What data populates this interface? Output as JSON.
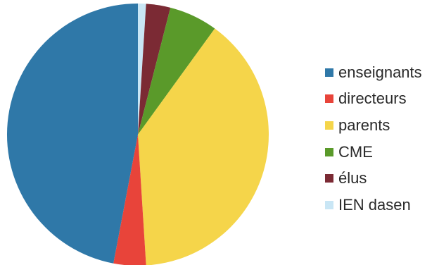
{
  "chart_data": {
    "type": "pie",
    "title": "",
    "start_angle_deg": 0,
    "direction": "clockwise",
    "legend_position": "right",
    "slices": [
      {
        "label": "IEN dasen",
        "value": 1,
        "color": "#c9e6f5"
      },
      {
        "label": "élus",
        "value": 3,
        "color": "#7b2a34"
      },
      {
        "label": "CME",
        "value": 6,
        "color": "#5a9a2a"
      },
      {
        "label": "parents",
        "value": 39,
        "color": "#f5d54a"
      },
      {
        "label": "directeurs",
        "value": 4,
        "color": "#e8443a"
      },
      {
        "label": "enseignants",
        "value": 47,
        "color": "#2f78a8"
      }
    ],
    "legend_order": [
      "enseignants",
      "directeurs",
      "parents",
      "CME",
      "élus",
      "IEN dasen"
    ]
  }
}
